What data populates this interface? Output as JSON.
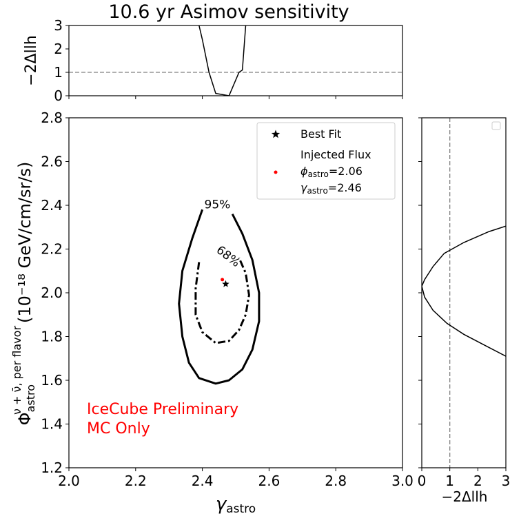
{
  "chart_data": [
    {
      "type": "line",
      "panel": "top",
      "title": "10.6 yr Asimov sensitivity",
      "ylabel": "−2Δllh",
      "xlim": [
        2.0,
        3.0
      ],
      "ylim": [
        0,
        3
      ],
      "yticks": [
        "0",
        "1",
        "2",
        "3"
      ],
      "reference_line": {
        "y": 1,
        "style": "dashed",
        "color": "#808080"
      },
      "series": [
        {
          "points": [
            [
              2.39,
              3.0
            ],
            [
              2.4,
              2.4
            ],
            [
              2.42,
              1.0
            ],
            [
              2.44,
              0.1
            ],
            [
              2.46,
              0.05
            ],
            [
              2.48,
              0.0
            ],
            [
              2.51,
              1.0
            ],
            [
              2.52,
              1.1
            ],
            [
              2.53,
              3.0
            ]
          ]
        }
      ]
    },
    {
      "type": "contour",
      "panel": "main",
      "xlabel_main": "γ",
      "xlabel_sub": "astro",
      "ylabel_main": "Φ",
      "ylabel_sub": "astro",
      "ylabel_sup": "ν + ν̄, per flavor",
      "ylabel_unit": "(10⁻¹⁸ GeV/cm/sr/s)",
      "xlim": [
        2.0,
        3.0
      ],
      "ylim": [
        1.2,
        2.8
      ],
      "xticks": [
        "2.0",
        "2.2",
        "2.4",
        "2.6",
        "2.8",
        "3.0"
      ],
      "yticks": [
        "1.2",
        "1.4",
        "1.6",
        "1.8",
        "2.0",
        "2.2",
        "2.4",
        "2.6",
        "2.8"
      ],
      "contours": [
        {
          "label": "95%",
          "style": "solid",
          "points": [
            [
              2.4,
              2.38
            ],
            [
              2.37,
              2.25
            ],
            [
              2.34,
              2.1
            ],
            [
              2.33,
              1.95
            ],
            [
              2.34,
              1.8
            ],
            [
              2.36,
              1.68
            ],
            [
              2.39,
              1.61
            ],
            [
              2.44,
              1.585
            ],
            [
              2.48,
              1.6
            ],
            [
              2.52,
              1.65
            ],
            [
              2.55,
              1.74
            ],
            [
              2.57,
              1.87
            ],
            [
              2.57,
              2.0
            ],
            [
              2.55,
              2.15
            ],
            [
              2.52,
              2.27
            ],
            [
              2.49,
              2.36
            ]
          ]
        },
        {
          "label": "68%",
          "style": "dashdot",
          "points": [
            [
              2.39,
              2.14
            ],
            [
              2.38,
              2.02
            ],
            [
              2.38,
              1.9
            ],
            [
              2.4,
              1.82
            ],
            [
              2.44,
              1.77
            ],
            [
              2.48,
              1.78
            ],
            [
              2.51,
              1.83
            ],
            [
              2.53,
              1.9
            ],
            [
              2.54,
              1.99
            ],
            [
              2.53,
              2.09
            ],
            [
              2.51,
              2.16
            ]
          ]
        }
      ],
      "best_fit": {
        "x": 2.47,
        "y": 2.04
      },
      "injected": {
        "x": 2.46,
        "y": 2.06
      },
      "legend": {
        "placement": "top-right",
        "best_fit_label": "Best Fit",
        "injected_title": "Injected Flux",
        "phi_main": "ϕ",
        "phi_sub": "astro",
        "phi_value": "=2.06",
        "gamma_main": "γ",
        "gamma_sub": "astro",
        "gamma_value": "=2.46"
      },
      "annotations": [
        "IceCube Preliminary",
        "MC Only"
      ],
      "annotation_color": "#ff0000"
    },
    {
      "type": "line",
      "panel": "right",
      "xlabel": "−2Δllh",
      "xlim": [
        0,
        3
      ],
      "ylim": [
        1.2,
        2.8
      ],
      "xticks": [
        "0",
        "1",
        "2",
        "3"
      ],
      "reference_line": {
        "x": 1,
        "style": "dashed",
        "color": "#808080"
      },
      "series": [
        {
          "points": [
            [
              3.0,
              2.305
            ],
            [
              2.4,
              2.28
            ],
            [
              1.5,
              2.23
            ],
            [
              0.8,
              2.18
            ],
            [
              0.4,
              2.12
            ],
            [
              0.1,
              2.06
            ],
            [
              0.0,
              2.03
            ],
            [
              0.1,
              1.98
            ],
            [
              0.4,
              1.92
            ],
            [
              0.9,
              1.86
            ],
            [
              1.5,
              1.81
            ],
            [
              2.4,
              1.75
            ],
            [
              3.0,
              1.71
            ]
          ]
        }
      ]
    }
  ]
}
